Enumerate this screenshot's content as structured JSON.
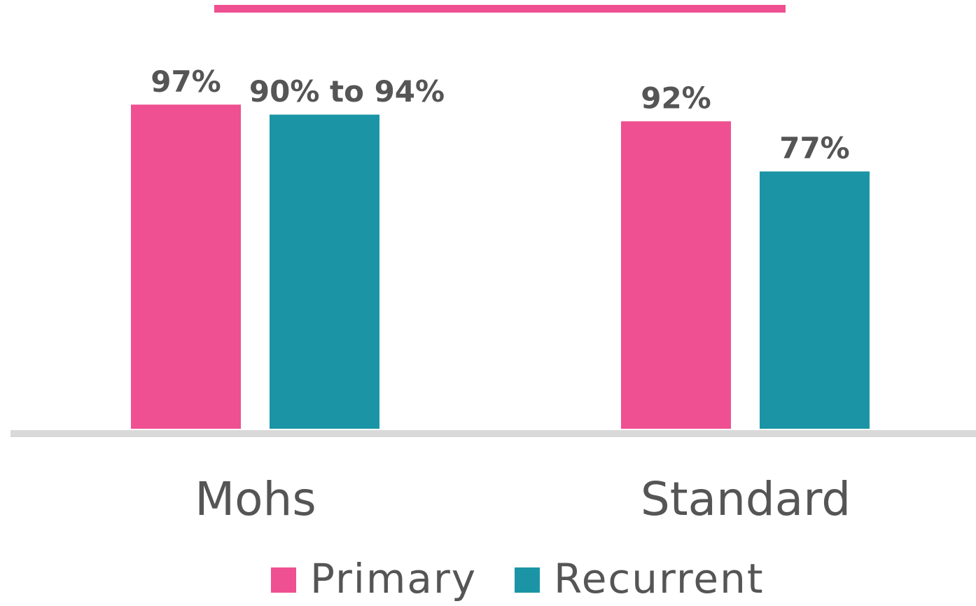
{
  "chart_data": {
    "type": "bar",
    "categories": [
      "Mohs",
      "Standard"
    ],
    "series": [
      {
        "name": "Primary",
        "color": "#ef5091",
        "values": [
          97,
          92
        ],
        "value_labels": [
          "97%",
          "92%"
        ]
      },
      {
        "name": "Recurrent",
        "color": "#1b95a5",
        "values": [
          94,
          77
        ],
        "value_labels": [
          "90% to 94%",
          "77%"
        ]
      }
    ],
    "ylim": [
      0,
      100
    ]
  }
}
